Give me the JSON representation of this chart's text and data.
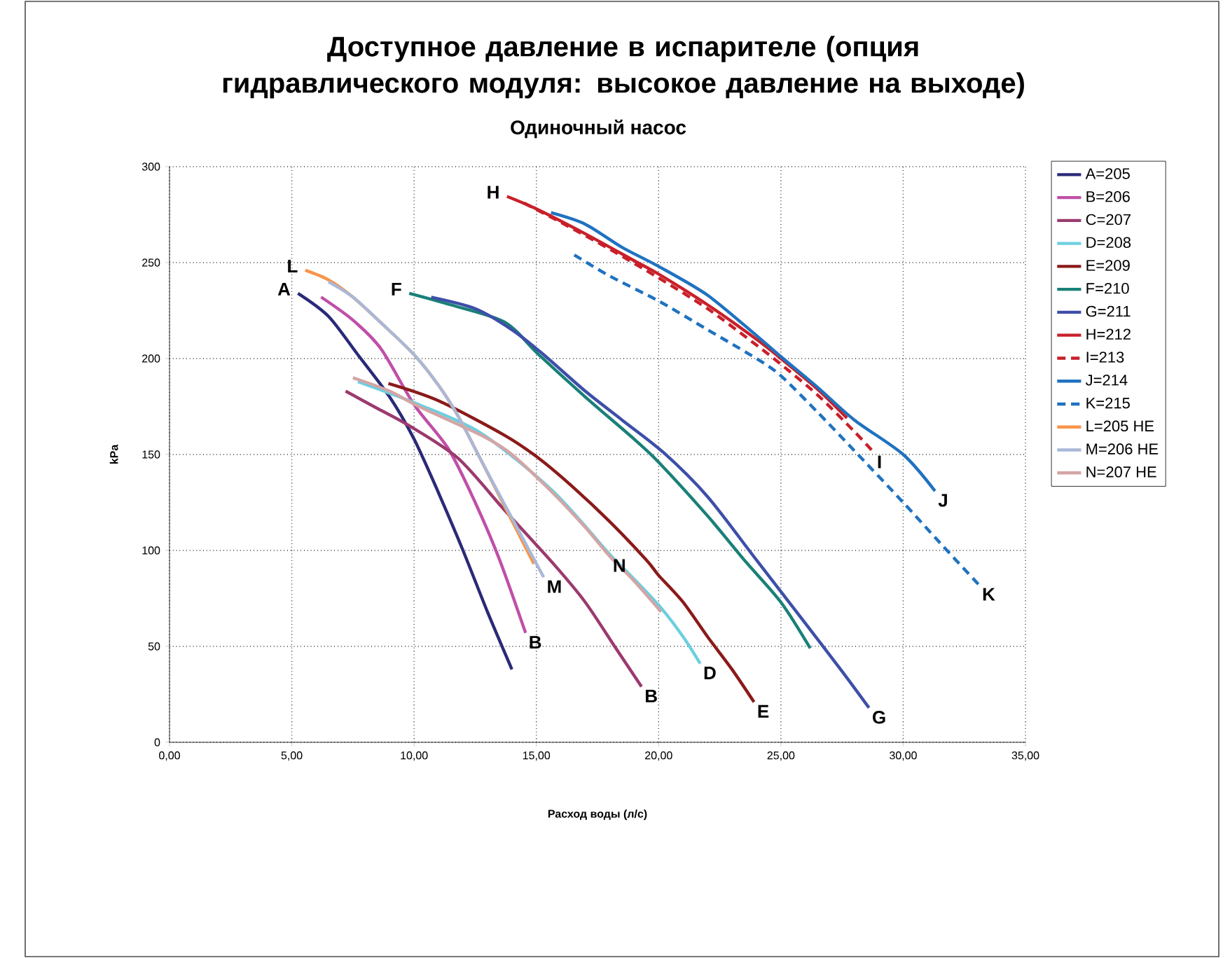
{
  "chart_data": {
    "type": "line",
    "title": "Доступное давление в испарителе (опция гидравлического модуля: высокое давление на выходе)",
    "subtitle": "Одиночный насос",
    "xlabel": "Расход воды (л/с)",
    "ylabel": "kPa",
    "xlim": [
      0,
      35
    ],
    "ylim": [
      0,
      300
    ],
    "xticks": [
      {
        "value": 0,
        "label": "0,00"
      },
      {
        "value": 5,
        "label": "5,00"
      },
      {
        "value": 10,
        "label": "10,00"
      },
      {
        "value": 15,
        "label": "15,00"
      },
      {
        "value": 20,
        "label": "20,00"
      },
      {
        "value": 25,
        "label": "25,00"
      },
      {
        "value": 30,
        "label": "30,00"
      },
      {
        "value": 35,
        "label": "35,00"
      }
    ],
    "yticks": [
      0,
      50,
      100,
      150,
      200,
      250,
      300
    ],
    "grid": true,
    "legend": "right",
    "marker": "none",
    "line_style": "solid",
    "series": [
      {
        "name": "A=205",
        "color": "#2a2a78",
        "x": [
          5.25,
          6.5,
          7.7,
          9,
          10,
          11,
          12,
          13,
          14
        ],
        "values": [
          234,
          222,
          202,
          180,
          158,
          130,
          100,
          68,
          38
        ]
      },
      {
        "name": "B=206",
        "color": "#c04fa8",
        "x": [
          6.2,
          7.5,
          8.65,
          10,
          11.4,
          12.5,
          13.5,
          14.56
        ],
        "values": [
          232,
          220,
          205,
          176,
          153,
          125,
          95,
          57
        ]
      },
      {
        "name": "C=207",
        "color": "#9b3a6e",
        "x": [
          7.2,
          8.5,
          9.8,
          11.8,
          13.7,
          15.7,
          17,
          18.2,
          19.3
        ],
        "values": [
          183,
          174,
          165,
          148,
          121,
          93,
          73,
          50,
          29
        ]
      },
      {
        "name": "D=208",
        "color": "#6ccfe0",
        "x": [
          7.7,
          10.2,
          12.75,
          15.67,
          18,
          19,
          20.1,
          21,
          21.7
        ],
        "values": [
          188,
          176,
          161,
          131,
          98,
          85,
          70,
          55,
          41
        ]
      },
      {
        "name": "E=209",
        "color": "#8b1a1a",
        "x": [
          8.95,
          11,
          13.7,
          15.1,
          16.5,
          18,
          19.5,
          20,
          21,
          22,
          23,
          23.9
        ],
        "values": [
          187,
          178,
          160,
          148,
          133,
          115,
          95,
          87,
          73,
          55,
          38,
          21
        ]
      },
      {
        "name": "F=210",
        "color": "#1a8078",
        "x": [
          9.8,
          11.5,
          13.7,
          15.1,
          17,
          19,
          20,
          22,
          23.5,
          25,
          26.2
        ],
        "values": [
          234,
          228,
          219,
          202,
          180,
          158,
          146,
          118,
          95,
          73,
          49
        ]
      },
      {
        "name": "G=211",
        "color": "#3d4fa8",
        "x": [
          10.7,
          12.5,
          14,
          15.3,
          17,
          18.5,
          20.2,
          22,
          24,
          26,
          27.5,
          28.6
        ],
        "values": [
          232,
          226,
          215,
          202,
          183,
          168,
          151,
          128,
          95,
          62,
          37,
          18
        ]
      },
      {
        "name": "H=212",
        "color": "#c8202a",
        "x": [
          13.8,
          15,
          17,
          19,
          20,
          22,
          24,
          25,
          26.5,
          27.7
        ],
        "values": [
          284.5,
          278,
          265,
          251,
          244,
          228,
          210,
          200,
          184,
          169
        ]
      },
      {
        "name": "I=213",
        "color": "#c8202a",
        "line_style": "dashed",
        "x": [
          14.5,
          16,
          18,
          20,
          22,
          24,
          25,
          26.5,
          28,
          28.8
        ],
        "values": [
          281,
          271,
          257,
          242,
          226,
          207,
          197,
          181,
          162,
          151
        ]
      },
      {
        "name": "J=214",
        "color": "#1f72c0",
        "x": [
          15.6,
          17,
          18.5,
          20,
          22,
          24,
          25,
          26.5,
          28,
          30,
          31.3
        ],
        "values": [
          276,
          270,
          258,
          248,
          233,
          212,
          201,
          185,
          168,
          150,
          131
        ]
      },
      {
        "name": "K=215",
        "color": "#1f72c0",
        "line_style": "dashed",
        "x": [
          16.55,
          18,
          20,
          22,
          24,
          25,
          26.5,
          28,
          30,
          31.5,
          33.1
        ],
        "values": [
          254,
          243,
          230,
          215,
          200,
          191,
          172,
          152,
          125,
          104,
          82
        ]
      },
      {
        "name": "L=205 HE",
        "color": "#f7954a",
        "x": [
          5.55,
          6.5,
          7.5,
          8.7,
          10,
          11,
          11.8,
          12.7,
          13.7,
          14.9
        ],
        "values": [
          246,
          241,
          232,
          218,
          202,
          186,
          170,
          148,
          123,
          93
        ]
      },
      {
        "name": "M=206 HE",
        "color": "#a9b8d8",
        "x": [
          6.5,
          7.5,
          8.7,
          10,
          11,
          11.8,
          12.7,
          13.7,
          14.5,
          15.3
        ],
        "values": [
          240,
          232,
          218,
          202,
          186,
          170,
          148,
          124,
          105,
          86
        ]
      },
      {
        "name": "N=207 HE",
        "color": "#d4a5a5",
        "x": [
          7.5,
          9,
          10.2,
          12.75,
          14,
          15.67,
          17,
          18,
          19,
          20.1
        ],
        "values": [
          190,
          183,
          175,
          160,
          150,
          130,
          112,
          97,
          84,
          68
        ]
      }
    ],
    "annotations": [
      {
        "text": "A",
        "x": 5.25,
        "y": 234
      },
      {
        "text": "L",
        "x": 5.55,
        "y": 246
      },
      {
        "text": "F",
        "x": 9.8,
        "y": 234
      },
      {
        "text": "H",
        "x": 13.8,
        "y": 284.5
      },
      {
        "text": "I",
        "x": 28.8,
        "y": 151
      },
      {
        "text": "J",
        "x": 31.3,
        "y": 131
      },
      {
        "text": "K",
        "x": 33.1,
        "y": 82
      },
      {
        "text": "M",
        "x": 15.3,
        "y": 86
      },
      {
        "text": "N",
        "x": 18,
        "y": 97
      },
      {
        "text": "B",
        "x": 14.56,
        "y": 57
      },
      {
        "text": "B",
        "x": 19.3,
        "y": 29
      },
      {
        "text": "D",
        "x": 21.7,
        "y": 41
      },
      {
        "text": "E",
        "x": 23.9,
        "y": 21
      },
      {
        "text": "G",
        "x": 28.6,
        "y": 18
      }
    ]
  }
}
